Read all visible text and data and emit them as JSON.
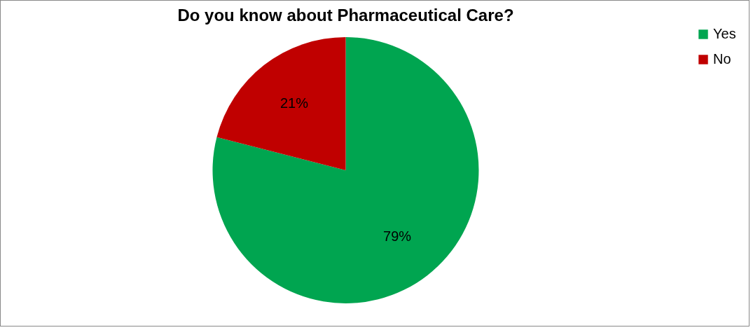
{
  "chart_data": {
    "type": "pie",
    "title": "Do you know about Pharmaceutical Care?",
    "categories": [
      "Yes",
      "No"
    ],
    "values": [
      79,
      21
    ],
    "colors": [
      "#00a550",
      "#c00000"
    ],
    "value_labels": [
      "79%",
      "21%"
    ],
    "legend": "right"
  }
}
